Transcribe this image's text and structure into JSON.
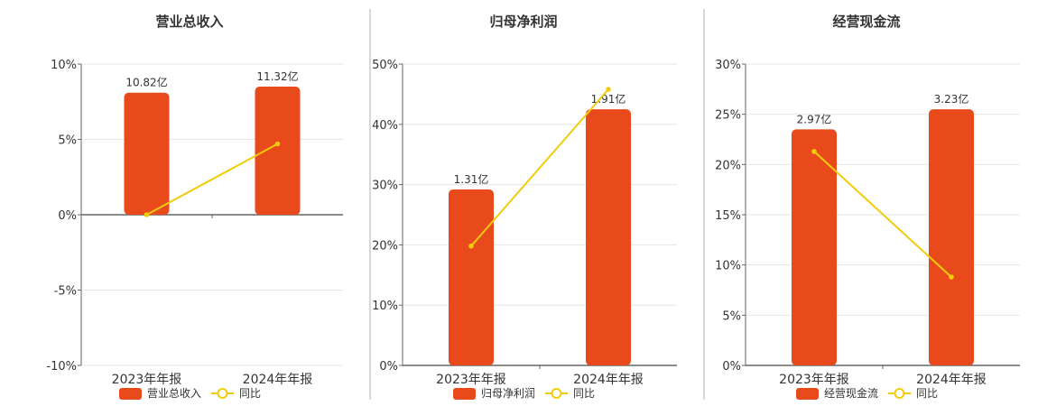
{
  "colors": {
    "bar": "#e84a1c",
    "line": "#f2cc0c",
    "grid": "#e6e6e6",
    "axis": "#666666",
    "divider": "#b0b0b0"
  },
  "legend_line_label": "同比",
  "chart_data": [
    {
      "type": "bar",
      "title": "营业总收入",
      "categories": [
        "2023年年报",
        "2024年年报"
      ],
      "series": [
        {
          "name": "营业总收入",
          "kind": "bar",
          "values": [
            8.1,
            8.5
          ],
          "labels": [
            "10.82亿",
            "11.32亿"
          ]
        },
        {
          "name": "同比",
          "kind": "line",
          "values": [
            0.0,
            4.7
          ]
        }
      ],
      "ylim": [
        -10,
        10
      ],
      "yticks": [
        "10%",
        "5%",
        "0%",
        "-5%",
        "-10%"
      ],
      "grid": true,
      "legend": "bottom"
    },
    {
      "type": "bar",
      "title": "归母净利润",
      "categories": [
        "2023年年报",
        "2024年年报"
      ],
      "series": [
        {
          "name": "归母净利润",
          "kind": "bar",
          "values": [
            29.2,
            42.5
          ],
          "labels": [
            "1.31亿",
            "1.91亿"
          ]
        },
        {
          "name": "同比",
          "kind": "line",
          "values": [
            19.8,
            45.8
          ]
        }
      ],
      "ylim": [
        0,
        50
      ],
      "yticks": [
        "50%",
        "40%",
        "30%",
        "20%",
        "10%",
        "0%"
      ],
      "grid": true,
      "legend": "bottom"
    },
    {
      "type": "bar",
      "title": "经营现金流",
      "categories": [
        "2023年年报",
        "2024年年报"
      ],
      "series": [
        {
          "name": "经营现金流",
          "kind": "bar",
          "values": [
            23.5,
            25.5
          ],
          "labels": [
            "2.97亿",
            "3.23亿"
          ]
        },
        {
          "name": "同比",
          "kind": "line",
          "values": [
            21.3,
            8.8
          ]
        }
      ],
      "ylim": [
        0,
        30
      ],
      "yticks": [
        "30%",
        "25%",
        "20%",
        "15%",
        "10%",
        "5%",
        "0%"
      ],
      "grid": true,
      "legend": "bottom"
    }
  ]
}
